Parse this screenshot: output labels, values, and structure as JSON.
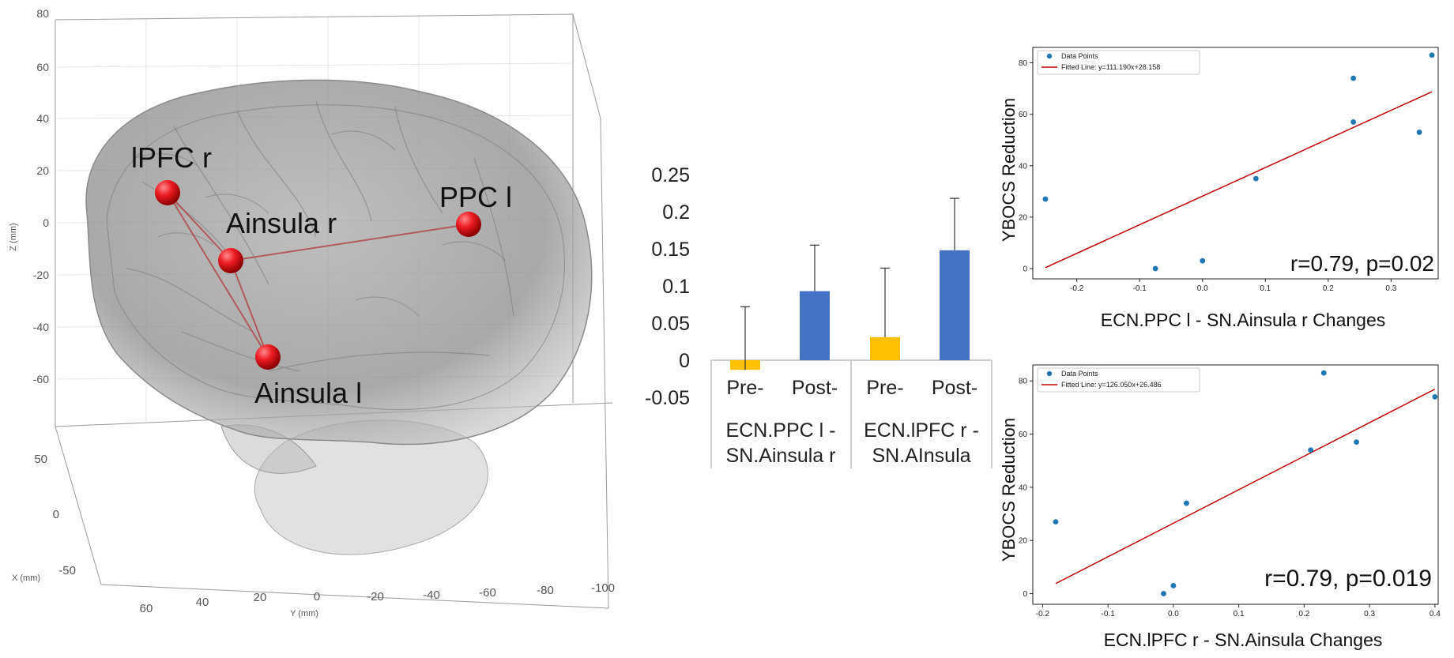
{
  "chart_data": [
    {
      "type": "scatter3d-brain",
      "z_axis": {
        "label": "Z (mm)",
        "ticks": [
          "80",
          "60",
          "40",
          "20",
          "0",
          "-20",
          "-40",
          "-60"
        ]
      },
      "y_axis": {
        "label": "Y (mm)",
        "ticks": [
          "60",
          "40",
          "20",
          "0",
          "-20",
          "-40",
          "-60",
          "-80",
          "-100"
        ]
      },
      "x_axis": {
        "label": "X (mm)",
        "ticks": [
          "50",
          "0",
          "-50"
        ]
      },
      "nodes": [
        {
          "name": "lPFC r"
        },
        {
          "name": "Ainsula r"
        },
        {
          "name": "PPC l"
        },
        {
          "name": "Ainsula l"
        }
      ],
      "edges": [
        [
          "lPFC r",
          "Ainsula r"
        ],
        [
          "lPFC r",
          "Ainsula l"
        ],
        [
          "Ainsula r",
          "PPC l"
        ],
        [
          "Ainsula r",
          "Ainsula l"
        ]
      ],
      "colors": {
        "node": "#e8141c",
        "edge": "#b24a4a",
        "brain": "#8f8f8f"
      }
    },
    {
      "type": "bar",
      "y_ticks": [
        "0.25",
        "0.2",
        "0.15",
        "0.1",
        "0.05",
        "0",
        "-0.05"
      ],
      "ylim": [
        -0.05,
        0.25
      ],
      "categories": [
        "Pre-",
        "Post-",
        "Pre-",
        "Post-"
      ],
      "groups": [
        {
          "line1": "ECN.PPC l -",
          "line2": "SN.Ainsula r"
        },
        {
          "line1": "ECN.lPFC r -",
          "line2": "SN.AInsula"
        }
      ],
      "values": [
        -0.013,
        0.093,
        0.031,
        0.148
      ],
      "errors": [
        0.085,
        0.062,
        0.093,
        0.07
      ],
      "colors": [
        "#ffc000",
        "#4472c4",
        "#ffc000",
        "#4472c4"
      ]
    },
    {
      "type": "scatter",
      "ylabel": "YBOCS Reduction",
      "xlabel": "ECN.PPC l - SN.Ainsula r Changes",
      "legend": {
        "points": "Data Points",
        "line": "Fitted Line: y=111.190x+28.158"
      },
      "annotation": "r=0.79, p=0.02",
      "x_ticks": [
        "-0.2",
        "-0.1",
        "0.0",
        "0.1",
        "0.2",
        "0.3"
      ],
      "y_ticks": [
        "0",
        "20",
        "40",
        "60",
        "80"
      ],
      "xlim": [
        -0.27,
        0.375
      ],
      "ylim": [
        -4,
        86
      ],
      "x": [
        -0.25,
        -0.075,
        0.0,
        0.085,
        0.24,
        0.24,
        0.345,
        0.365
      ],
      "y": [
        27,
        0,
        3,
        35,
        74,
        57,
        53,
        83
      ],
      "fit": {
        "slope": 111.19,
        "intercept": 28.158,
        "x_range": [
          -0.25,
          0.365
        ]
      },
      "colors": {
        "points": "#1f77b4",
        "line": "#c00000"
      }
    },
    {
      "type": "scatter",
      "ylabel": "YBOCS Reduction",
      "xlabel": "ECN.lPFC r - SN.Ainsula Changes",
      "legend": {
        "points": "Data Points",
        "line": "Fitted Line: y=126.050x+26.486"
      },
      "annotation": "r=0.79, p=0.019",
      "x_ticks": [
        "-0.2",
        "-0.1",
        "0.0",
        "0.1",
        "0.2",
        "0.3",
        "0.4"
      ],
      "y_ticks": [
        "0",
        "20",
        "40",
        "60",
        "80"
      ],
      "xlim": [
        -0.215,
        0.405
      ],
      "ylim": [
        -4,
        86
      ],
      "x": [
        -0.18,
        -0.015,
        0.0,
        0.02,
        0.21,
        0.23,
        0.28,
        0.4
      ],
      "y": [
        27,
        0,
        3,
        34,
        54,
        83,
        57,
        74
      ],
      "fit": {
        "slope": 126.05,
        "intercept": 26.486,
        "x_range": [
          -0.18,
          0.4
        ]
      },
      "colors": {
        "points": "#1f77b4",
        "line": "#c00000"
      }
    }
  ]
}
